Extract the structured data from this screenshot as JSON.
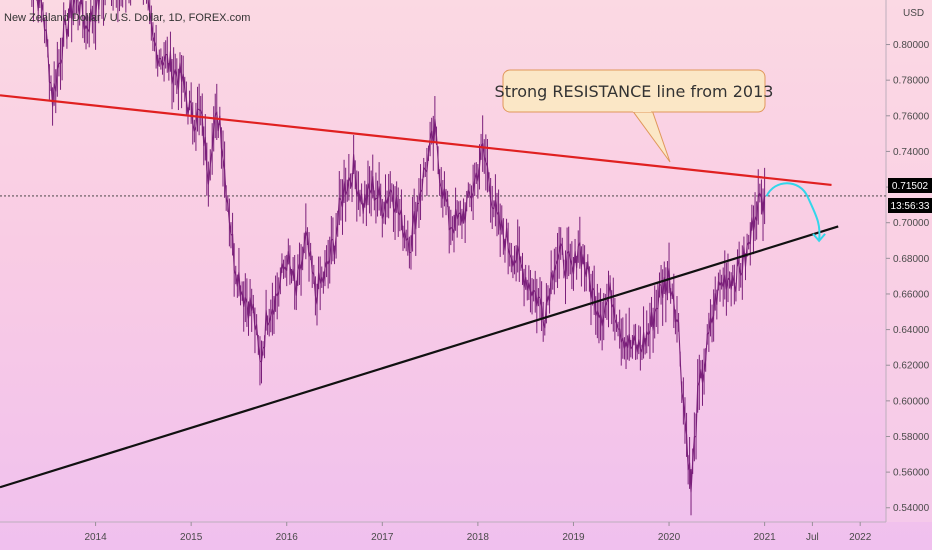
{
  "symbol_title": "New Zealand Dollar / U.S. Dollar, 1D, FOREX.com",
  "currency_label": "USD",
  "price_tag": "0.71502",
  "countdown_tag": "13:56:33",
  "annotation": "Strong RESISTANCE line from 2013",
  "colors": {
    "candles": "#7a1f7a",
    "resistance_line": "#e02020",
    "support_line": "#111111",
    "projection_arrow": "#33d6ea",
    "price_tag_bg": "#000000",
    "callout_bg": "#fbe7c6",
    "callout_border": "#e0975a"
  },
  "chart_data": {
    "type": "line",
    "series": [
      {
        "x": [
          2013.3,
          2013.45,
          2013.55,
          2013.65,
          2013.8,
          2013.9,
          2014.0,
          2014.15,
          2014.3,
          2014.45,
          2014.6,
          2014.75,
          2014.9,
          2015.0,
          2015.1,
          2015.18,
          2015.22,
          2015.3,
          2015.35,
          2015.45,
          2015.55,
          2015.65,
          2015.72,
          2015.8,
          2015.9,
          2016.0,
          2016.1,
          2016.2,
          2016.3,
          2016.4,
          2016.5,
          2016.6,
          2016.7,
          2016.8,
          2016.9,
          2017.0,
          2017.1,
          2017.2,
          2017.3,
          2017.4,
          2017.5,
          2017.55,
          2017.6,
          2017.7,
          2017.8,
          2017.9,
          2018.0,
          2018.05,
          2018.1,
          2018.2,
          2018.3,
          2018.4,
          2018.5,
          2018.6,
          2018.7,
          2018.8,
          2018.9,
          2019.0,
          2019.05,
          2019.1,
          2019.2,
          2019.3,
          2019.4,
          2019.5,
          2019.6,
          2019.7,
          2019.8,
          2019.9,
          2020.0,
          2020.05,
          2020.1,
          2020.15,
          2020.2,
          2020.23,
          2020.3,
          2020.4,
          2020.5,
          2020.6,
          2020.7,
          2020.8,
          2020.85,
          2020.9,
          2020.95,
          2021.0
        ],
        "values": [
          0.84,
          0.82,
          0.77,
          0.8,
          0.83,
          0.81,
          0.82,
          0.84,
          0.83,
          0.85,
          0.8,
          0.79,
          0.78,
          0.76,
          0.76,
          0.73,
          0.75,
          0.76,
          0.73,
          0.68,
          0.66,
          0.65,
          0.62,
          0.65,
          0.66,
          0.68,
          0.66,
          0.69,
          0.66,
          0.67,
          0.69,
          0.72,
          0.73,
          0.71,
          0.72,
          0.71,
          0.72,
          0.7,
          0.69,
          0.72,
          0.74,
          0.75,
          0.73,
          0.7,
          0.7,
          0.71,
          0.73,
          0.74,
          0.73,
          0.7,
          0.69,
          0.68,
          0.67,
          0.66,
          0.65,
          0.68,
          0.68,
          0.67,
          0.69,
          0.68,
          0.66,
          0.65,
          0.66,
          0.64,
          0.63,
          0.63,
          0.64,
          0.66,
          0.67,
          0.66,
          0.64,
          0.6,
          0.57,
          0.55,
          0.6,
          0.63,
          0.66,
          0.67,
          0.67,
          0.68,
          0.69,
          0.71,
          0.71,
          0.715
        ]
      }
    ],
    "x_ticks": [
      "2014",
      "2015",
      "2016",
      "2017",
      "2018",
      "2019",
      "2020",
      "2021",
      "Jul",
      "2022"
    ],
    "y_ticks": [
      "0.54000",
      "0.56000",
      "0.58000",
      "0.60000",
      "0.62000",
      "0.64000",
      "0.66000",
      "0.68000",
      "0.70000",
      "0.72000",
      "0.74000",
      "0.76000",
      "0.78000",
      "0.80000"
    ],
    "xlim": [
      2013.0,
      2022.27
    ],
    "ylim": [
      0.532,
      0.825
    ],
    "last_price": 0.71502,
    "resistance_line": {
      "start": [
        2013.0,
        0.7715
      ],
      "end": [
        2021.7,
        0.7212
      ]
    },
    "support_line": {
      "start": [
        2013.0,
        0.5515
      ],
      "end": [
        2021.77,
        0.6979
      ]
    },
    "projection": {
      "start": [
        2021.02,
        0.7148
      ],
      "peak": [
        2021.22,
        0.7213
      ],
      "end": [
        2021.57,
        0.6898
      ]
    },
    "grid": false,
    "legend": "none"
  }
}
